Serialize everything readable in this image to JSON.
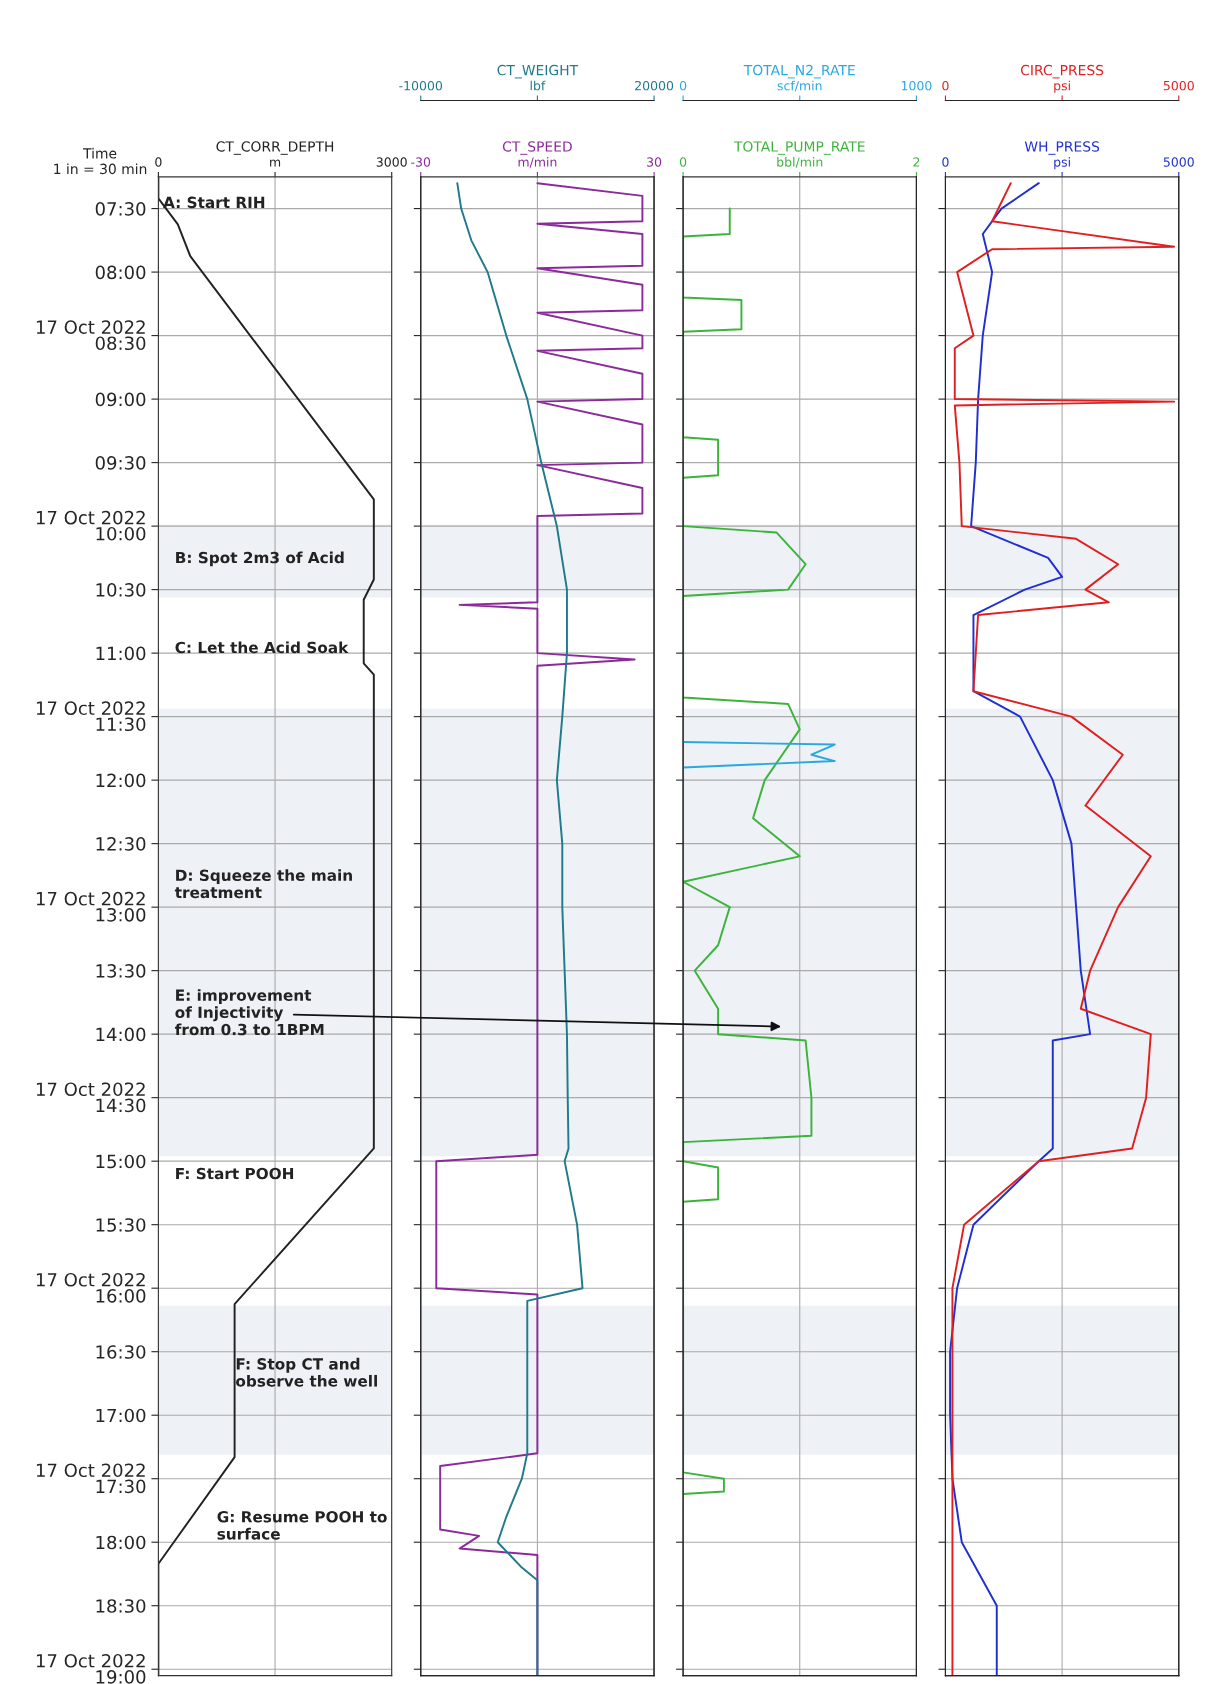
{
  "chart_data": [
    {
      "type": "line",
      "orientation": "horizontal",
      "xlabel": "CT_CORR_DEPTH",
      "ylabel": "Time\n1 in = 30 min",
      "xlim": [
        0,
        3000
      ],
      "xticks": [
        0,
        {
          "value": 1500,
          "label": "m"
        },
        3000
      ],
      "ylim": [
        19.05,
        7.25
      ],
      "yticks": [
        {
          "value": 7.5,
          "label": "07:30"
        },
        {
          "value": 8,
          "label": "08:00"
        },
        {
          "value": 8.5,
          "label": "17 Oct 2022\n08:30"
        },
        {
          "value": 9,
          "label": "09:00"
        },
        {
          "value": 9.5,
          "label": "09:30"
        },
        {
          "value": 10,
          "label": "17 Oct 2022\n10:00"
        },
        {
          "value": 10.5,
          "label": "10:30"
        },
        {
          "value": 11,
          "label": "11:00"
        },
        {
          "value": 11.5,
          "label": "17 Oct 2022\n11:30"
        },
        {
          "value": 12,
          "label": "12:00"
        },
        {
          "value": 12.5,
          "label": "12:30"
        },
        {
          "value": 13,
          "label": "17 Oct 2022\n13:00"
        },
        {
          "value": 13.5,
          "label": "13:30"
        },
        {
          "value": 14,
          "label": "14:00"
        },
        {
          "value": 14.5,
          "label": "17 Oct 2022\n14:30"
        },
        {
          "value": 15,
          "label": "15:00"
        },
        {
          "value": 15.5,
          "label": "15:30"
        },
        {
          "value": 16,
          "label": "17 Oct 2022\n16:00"
        },
        {
          "value": 16.5,
          "label": "16:30"
        },
        {
          "value": 17,
          "label": "17:00"
        },
        {
          "value": 17.5,
          "label": "17 Oct 2022\n17:30"
        },
        {
          "value": 18,
          "label": "18:00"
        },
        {
          "value": 18.5,
          "label": "18:30"
        },
        {
          "value": 19,
          "label": "17 Oct 2022\n19:00"
        }
      ],
      "grid": true,
      "series": [
        {
          "color": "#222222",
          "x": [
            7.25,
            7.42,
            7.625,
            7.875,
            9.79,
            10.42,
            10.58,
            11.08,
            11.17,
            14.9,
            16.125,
            17.33,
            18.17,
            19.05
          ],
          "values": [
            0,
            0,
            250,
            410,
            2770,
            2770,
            2640,
            2640,
            2770,
            2770,
            980,
            980,
            0,
            0
          ]
        }
      ],
      "bands": [
        {
          "axis": "y",
          "from": 10.0,
          "to": 10.55,
          "color": "#2a4a7a"
        },
        {
          "axis": "y",
          "from": 11.45,
          "to": 14.95,
          "color": "#2a4a7a"
        },
        {
          "axis": "y",
          "from": 16.15,
          "to": 17.3,
          "color": "#2a4a7a"
        }
      ],
      "annotations": [
        "A: Start RIH",
        "B: Spot 2m3 of Acid",
        "C: Let the Acid Soak",
        "D: Squeeze the main\ntreatment",
        "E: improvement\nof Injectivity\nfrom 0.3 to 1BPM",
        "F: Start POOH",
        "F: Stop CT and\nobserve the well",
        "G: Resume POOH to\nsurface"
      ]
    },
    {
      "type": "line",
      "orientation": "horizontal",
      "xlabel": "CT_SPEED",
      "x2label": "CT_WEIGHT",
      "xlim": [
        -30,
        30
      ],
      "xticks": [
        -30,
        {
          "value": 0,
          "label": "m/min"
        },
        30
      ],
      "x2lim": [
        -10000,
        20000
      ],
      "x2ticks": [
        -10000,
        {
          "value": 5000,
          "label": "lbf"
        },
        20000
      ],
      "ylim": [
        19.05,
        7.25
      ],
      "yticks": [
        7.5,
        8,
        8.5,
        9,
        9.5,
        10,
        10.5,
        11,
        11.5,
        12,
        12.5,
        13,
        13.5,
        14,
        14.5,
        15,
        15.5,
        16,
        16.5,
        17,
        17.5,
        18,
        18.5,
        19
      ],
      "tick_labels": "x",
      "grid": true,
      "series": [
        {
          "color": "#1f7a8c",
          "axis": "x2",
          "x": [
            7.3,
            7.5,
            7.75,
            8.0,
            8.5,
            9.0,
            9.5,
            10.0,
            10.5,
            11.0,
            11.5,
            12.0,
            12.5,
            13.0,
            13.5,
            14.0,
            14.5,
            14.9,
            15.0,
            15.5,
            16.0,
            16.1,
            17.3,
            17.5,
            17.8,
            18.0,
            18.2,
            18.3,
            19.05
          ],
          "values": [
            -5300,
            -4800,
            -3500,
            -1400,
            1000,
            3700,
            5500,
            7500,
            8800,
            8800,
            8200,
            7500,
            8200,
            8200,
            8500,
            8800,
            8900,
            9000,
            8500,
            10100,
            10800,
            3700,
            3700,
            3000,
            1000,
            -100,
            3000,
            5000,
            5000
          ]
        },
        {
          "color": "#8b2a9b",
          "x": [
            7.3,
            7.4,
            7.6,
            7.62,
            7.7,
            7.95,
            7.97,
            8.1,
            8.3,
            8.32,
            8.5,
            8.6,
            8.62,
            8.8,
            9.0,
            9.02,
            9.2,
            9.5,
            9.52,
            9.7,
            9.9,
            9.92,
            10.6,
            10.62,
            10.65,
            11.0,
            11.05,
            11.1,
            14.95,
            15.0,
            16.0,
            16.05,
            17.3,
            17.4,
            17.9,
            17.95,
            18.05,
            18.1,
            19.05
          ],
          "values": [
            0,
            27,
            27,
            0,
            27,
            27,
            0,
            27,
            27,
            0,
            27,
            27,
            0,
            27,
            27,
            0,
            27,
            27,
            0,
            27,
            27,
            0,
            0,
            -20,
            0,
            0,
            25,
            0,
            0,
            -26,
            -26,
            0,
            0,
            -25,
            -25,
            -15,
            -20,
            0,
            0
          ]
        }
      ],
      "bands": [
        {
          "axis": "y",
          "from": 10.0,
          "to": 10.55,
          "color": "#2a4a7a"
        },
        {
          "axis": "y",
          "from": 11.45,
          "to": 14.95,
          "color": "#2a4a7a"
        },
        {
          "axis": "y",
          "from": 16.15,
          "to": 17.3,
          "color": "#2a4a7a"
        }
      ]
    },
    {
      "type": "line",
      "orientation": "horizontal",
      "xlabel": "TOTAL_PUMP_RATE",
      "x2label": "TOTAL_N2_RATE",
      "xlim": [
        0,
        2
      ],
      "xticks": [
        0,
        {
          "value": 1,
          "label": "bbl/min"
        },
        2
      ],
      "x2lim": [
        0,
        1000
      ],
      "x2ticks": [
        0,
        {
          "value": 500,
          "label": "scf/min"
        },
        1000
      ],
      "ylim": [
        19.05,
        7.25
      ],
      "yticks": [
        7.5,
        8,
        8.5,
        9,
        9.5,
        10,
        10.5,
        11,
        11.5,
        12,
        12.5,
        13,
        13.5,
        14,
        14.5,
        15,
        15.5,
        16,
        16.5,
        17,
        17.5,
        18,
        18.5,
        19
      ],
      "tick_labels": "x",
      "grid": true,
      "series": [
        {
          "color": "#3cb43c",
          "x": [
            7.5,
            7.7,
            7.72,
            8.2,
            8.22,
            8.45,
            8.47,
            9.3,
            9.32,
            9.6,
            9.62,
            10.0,
            10.05,
            10.3,
            10.5,
            10.55,
            11.35,
            11.4,
            11.6,
            12.0,
            12.3,
            12.6,
            12.8,
            13.0,
            13.3,
            13.5,
            13.8,
            14.0,
            14.05,
            14.5,
            14.8,
            14.85,
            15.0,
            15.05,
            15.3,
            15.32,
            17.45,
            17.5,
            17.6,
            17.62
          ],
          "values": [
            0.4,
            0.4,
            0,
            0,
            0.5,
            0.5,
            0,
            0,
            0.3,
            0.3,
            0,
            0,
            0.8,
            1.05,
            0.9,
            0,
            0,
            0.9,
            1.0,
            0.7,
            0.6,
            1.0,
            0,
            0.4,
            0.3,
            0.1,
            0.3,
            0.3,
            1.05,
            1.1,
            1.1,
            0,
            0,
            0.3,
            0.3,
            0,
            0,
            0.35,
            0.35,
            0
          ]
        },
        {
          "color": "#29a8e0",
          "axis": "x2",
          "x": [
            11.7,
            11.72,
            11.8,
            11.85,
            11.9
          ],
          "values": [
            0,
            650,
            550,
            650,
            0
          ]
        }
      ],
      "bands": [
        {
          "axis": "y",
          "from": 10.0,
          "to": 10.55,
          "color": "#2a4a7a"
        },
        {
          "axis": "y",
          "from": 11.45,
          "to": 14.95,
          "color": "#2a4a7a"
        },
        {
          "axis": "y",
          "from": 16.15,
          "to": 17.3,
          "color": "#2a4a7a"
        }
      ]
    },
    {
      "type": "line",
      "orientation": "horizontal",
      "xlabel": "WH_PRESS",
      "x2label": "CIRC_PRESS",
      "xlim": [
        0,
        5000
      ],
      "xticks": [
        0,
        {
          "value": 2500,
          "label": "psi"
        },
        5000
      ],
      "x2lim": [
        0,
        5000
      ],
      "x2ticks": [
        0,
        {
          "value": 2500,
          "label": "psi"
        },
        5000
      ],
      "ylim": [
        19.05,
        7.25
      ],
      "yticks": [
        7.5,
        8,
        8.5,
        9,
        9.5,
        10,
        10.5,
        11,
        11.5,
        12,
        12.5,
        13,
        13.5,
        14,
        14.5,
        15,
        15.5,
        16,
        16.5,
        17,
        17.5,
        18,
        18.5,
        19
      ],
      "tick_labels": "x",
      "grid": true,
      "series": [
        {
          "color": "#e02020",
          "axis": "x2",
          "x": [
            7.3,
            7.6,
            7.8,
            7.82,
            8.0,
            8.5,
            8.6,
            9.0,
            9.02,
            9.05,
            9.5,
            10.0,
            10.1,
            10.3,
            10.5,
            10.6,
            10.7,
            11.3,
            11.5,
            11.8,
            12.2,
            12.6,
            13.0,
            13.5,
            13.8,
            14.0,
            14.5,
            14.9,
            15.0,
            15.5,
            16.0,
            17.5,
            18.0,
            19.05
          ],
          "values": [
            1400,
            1000,
            4900,
            1000,
            250,
            600,
            200,
            200,
            4900,
            200,
            300,
            350,
            2800,
            3700,
            3000,
            3500,
            700,
            600,
            2700,
            3800,
            3000,
            4400,
            3700,
            3100,
            2900,
            4400,
            4300,
            4000,
            2000,
            400,
            150,
            150,
            150,
            150
          ]
        },
        {
          "color": "#2030d0",
          "x": [
            7.3,
            7.5,
            7.7,
            8.0,
            8.5,
            9.0,
            9.5,
            10.0,
            10.25,
            10.4,
            10.5,
            10.7,
            11.3,
            11.5,
            12.0,
            12.5,
            13.0,
            13.5,
            14.0,
            14.05,
            14.9,
            15.0,
            15.5,
            16.0,
            16.5,
            17.0,
            17.5,
            18.0,
            18.5,
            19.05
          ],
          "values": [
            2000,
            1200,
            800,
            1000,
            800,
            700,
            650,
            550,
            2200,
            2500,
            1700,
            600,
            600,
            1600,
            2300,
            2700,
            2800,
            2900,
            3100,
            2300,
            2300,
            2000,
            600,
            250,
            100,
            100,
            150,
            350,
            1100,
            1100
          ]
        }
      ],
      "bands": [
        {
          "axis": "y",
          "from": 10.0,
          "to": 10.55,
          "color": "#2a4a7a"
        },
        {
          "axis": "y",
          "from": 11.45,
          "to": 14.95,
          "color": "#2a4a7a"
        },
        {
          "axis": "y",
          "from": 16.15,
          "to": 17.3,
          "color": "#2a4a7a"
        }
      ]
    }
  ]
}
